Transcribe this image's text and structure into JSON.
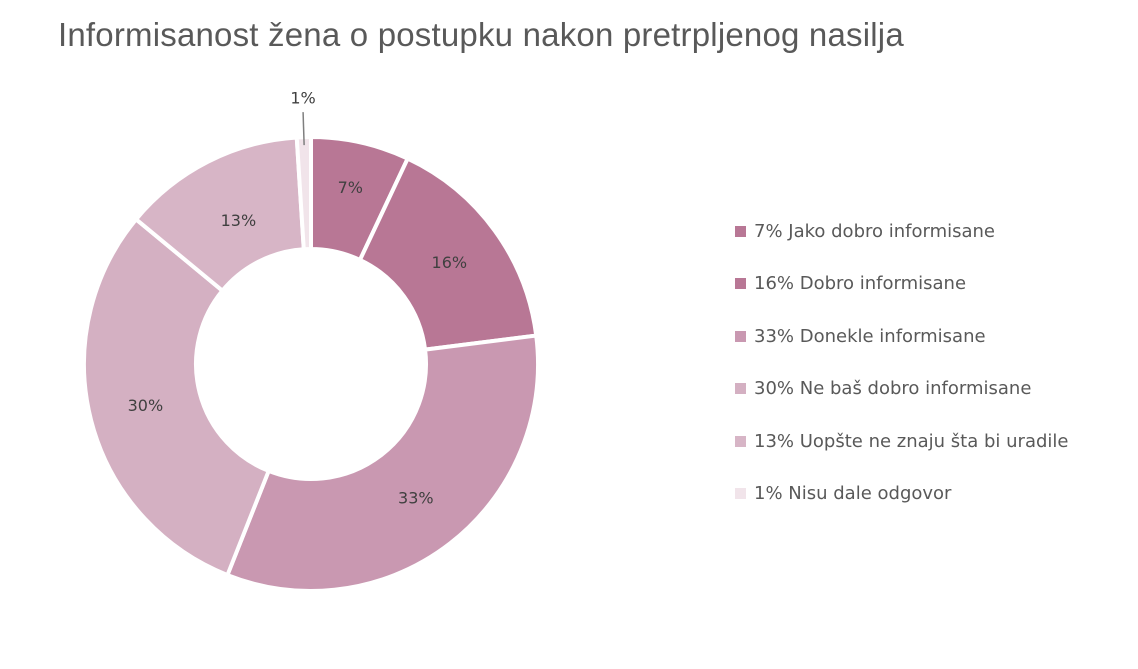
{
  "chart_data": {
    "type": "pie",
    "title": "Informisanost žena o postupku nakon pretrpljenog nasilja",
    "slices": [
      {
        "label": "7%",
        "value": 7,
        "legend": "7% Jako dobro informisane",
        "color": "#b87795"
      },
      {
        "label": "16%",
        "value": 16,
        "legend": "16% Dobro informisane",
        "color": "#b87795"
      },
      {
        "label": "33%",
        "value": 33,
        "legend": "33% Donekle informisane",
        "color": "#c998b1"
      },
      {
        "label": "30%",
        "value": 30,
        "legend": "30% Ne baš dobro informisane",
        "color": "#d4b0c2"
      },
      {
        "label": "13%",
        "value": 13,
        "legend": "13% Uopšte ne znaju šta bi uradile",
        "color": "#d7b5c6"
      },
      {
        "label": "1%",
        "value": 1,
        "legend": "1% Nisu dale odgovor",
        "color": "#f1e4ea"
      }
    ],
    "legend_position": "right"
  }
}
